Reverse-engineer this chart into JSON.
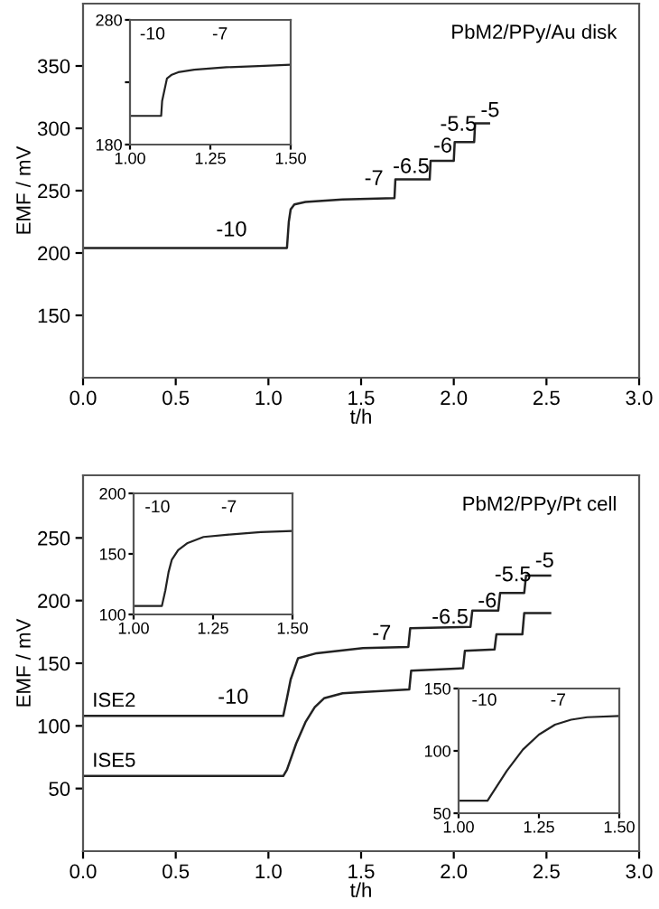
{
  "chart_data": [
    {
      "type": "line",
      "xlabel": "t/h",
      "ylabel": "EMF / mV",
      "xlim": [
        0,
        3
      ],
      "ylim": [
        100,
        400
      ],
      "xticks": [
        {
          "value": 0,
          "label": "0.0"
        },
        0.5,
        {
          "value": 1,
          "label": "1.0"
        },
        1.5,
        {
          "value": 2,
          "label": "2.0"
        },
        2.5,
        {
          "value": 3,
          "label": "3.0"
        }
      ],
      "yticks": [
        150,
        200,
        250,
        300,
        350
      ],
      "grid": false,
      "legend": false,
      "series": [
        {
          "color": "#222222",
          "x": [
            0,
            1.1,
            1.11,
            1.12,
            1.14,
            1.2,
            1.4,
            1.68,
            1.685,
            1.87,
            1.875,
            2.0,
            2.005,
            2.11,
            2.115,
            2.19
          ],
          "values": [
            204,
            204,
            225,
            235,
            239,
            241,
            243,
            244,
            259,
            259,
            274,
            274,
            289,
            289,
            304,
            304
          ]
        }
      ],
      "annotations": [
        "PbM2/PPy/Au disk",
        "-10",
        "-7",
        "-6.5",
        "-6",
        "-5.5",
        "-5"
      ]
    },
    {
      "type": "line",
      "xlim": [
        1.0,
        1.5
      ],
      "ylim": [
        180,
        280
      ],
      "xticks": [
        {
          "value": 1.0,
          "label": "1.00"
        },
        1.25,
        {
          "value": 1.5,
          "label": "1.50"
        }
      ],
      "yticks": [
        180,
        {
          "value": 230,
          "label": null
        },
        280
      ],
      "grid": false,
      "legend": false,
      "series": [
        {
          "color": "#222222",
          "x": [
            1.0,
            1.097,
            1.1,
            1.115,
            1.13,
            1.15,
            1.2,
            1.3,
            1.4,
            1.5
          ],
          "values": [
            203,
            203,
            215,
            233,
            236,
            238,
            240,
            242,
            243,
            244
          ]
        }
      ],
      "annotations": [
        "-10",
        "-7"
      ]
    },
    {
      "type": "line",
      "xlabel": "t/h",
      "ylabel": "EMF / mV",
      "xlim": [
        0,
        3
      ],
      "ylim": [
        0,
        300
      ],
      "xticks": [
        {
          "value": 0,
          "label": "0.0"
        },
        0.5,
        {
          "value": 1,
          "label": "1.0"
        },
        1.5,
        {
          "value": 2,
          "label": "2.0"
        },
        2.5,
        {
          "value": 3,
          "label": "3.0"
        }
      ],
      "yticks": [
        50,
        100,
        150,
        200,
        250
      ],
      "grid": false,
      "legend": false,
      "series": [
        {
          "name": "ISE2",
          "color": "#222222",
          "x": [
            0,
            1.08,
            1.1,
            1.12,
            1.16,
            1.26,
            1.51,
            1.755,
            1.765,
            2.09,
            2.1,
            2.24,
            2.25,
            2.38,
            2.39,
            2.52
          ],
          "values": [
            108,
            108,
            122,
            137,
            154,
            158,
            162,
            163,
            178,
            179,
            192,
            192,
            206,
            206,
            220,
            220
          ]
        },
        {
          "name": "ISE5",
          "color": "#222222",
          "x": [
            0,
            1.08,
            1.1,
            1.15,
            1.2,
            1.25,
            1.3,
            1.4,
            1.5,
            1.76,
            1.77,
            2.05,
            2.06,
            2.22,
            2.23,
            2.37,
            2.38,
            2.52
          ],
          "values": [
            60,
            60,
            65,
            86,
            103,
            115,
            122,
            126,
            127,
            129,
            144,
            146,
            160,
            161,
            173,
            173,
            190,
            190
          ]
        }
      ],
      "annotations": [
        "PbM2/PPy/Pt cell",
        "-10",
        "-7",
        "-6.5",
        "-6",
        "-5.5",
        "-5"
      ]
    },
    {
      "type": "line",
      "xlim": [
        1.0,
        1.5
      ],
      "ylim": [
        100,
        200
      ],
      "xticks": [
        {
          "value": 1.0,
          "label": "1.00"
        },
        1.25,
        {
          "value": 1.5,
          "label": "1.50"
        }
      ],
      "yticks": [
        100,
        150,
        200
      ],
      "grid": false,
      "legend": false,
      "series": [
        {
          "color": "#222222",
          "x": [
            1.0,
            1.089,
            1.1,
            1.11,
            1.12,
            1.14,
            1.17,
            1.22,
            1.3,
            1.4,
            1.5
          ],
          "values": [
            107,
            107,
            120,
            135,
            145,
            153,
            159,
            164,
            166,
            168,
            169
          ]
        }
      ],
      "annotations": [
        "-10",
        "-7"
      ]
    },
    {
      "type": "line",
      "xlim": [
        1.0,
        1.5
      ],
      "ylim": [
        50,
        150
      ],
      "xticks": [
        {
          "value": 1.0,
          "label": "1.00"
        },
        1.25,
        {
          "value": 1.5,
          "label": "1.50"
        }
      ],
      "yticks": [
        50,
        100,
        150
      ],
      "grid": false,
      "legend": false,
      "series": [
        {
          "color": "#222222",
          "x": [
            1.0,
            1.09,
            1.1,
            1.15,
            1.2,
            1.25,
            1.3,
            1.35,
            1.4,
            1.5
          ],
          "values": [
            60,
            60,
            64,
            84,
            101,
            113,
            121,
            125,
            127,
            128
          ]
        }
      ],
      "annotations": [
        "-10",
        "-7"
      ]
    }
  ]
}
